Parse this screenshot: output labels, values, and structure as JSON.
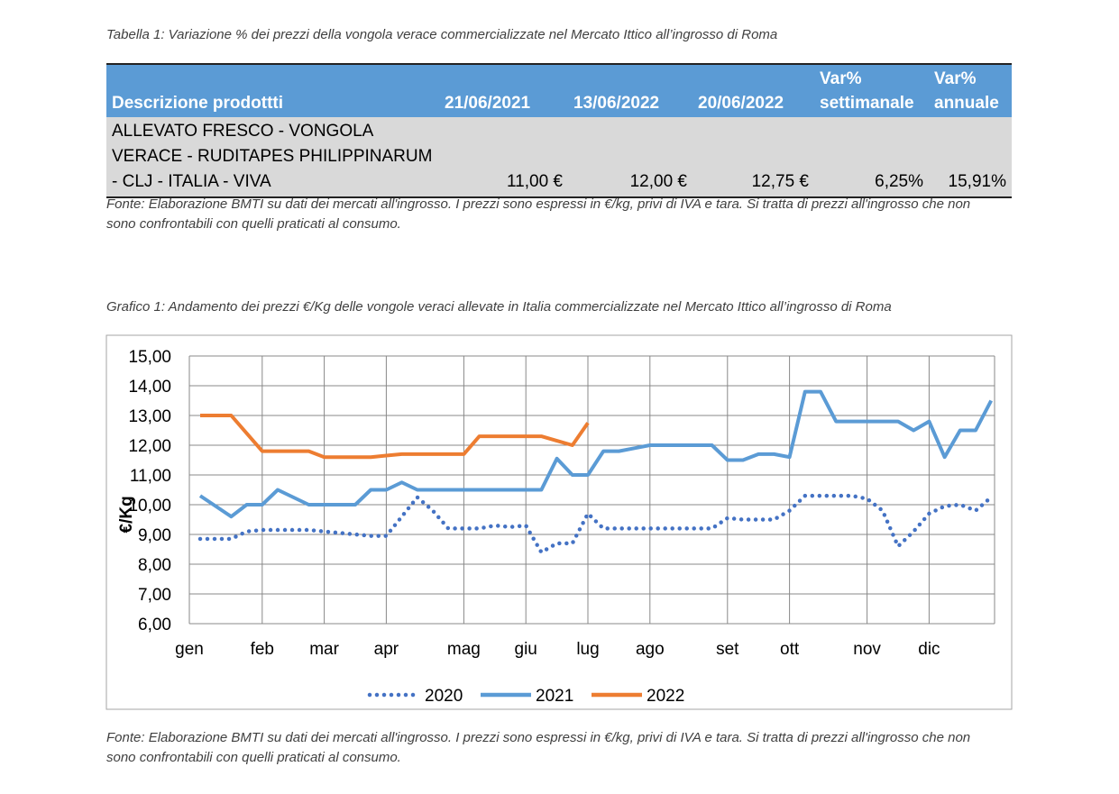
{
  "table_caption": "Tabella 1: Variazione % dei prezzi della vongola verace commercializzate nel Mercato Ittico all’ingrosso di Roma",
  "table": {
    "header": [
      "Descrizione prodottti",
      "21/06/2021",
      "13/06/2022",
      "20/06/2022",
      "Var% settimanale",
      "Var% annuale"
    ],
    "rows": [
      [
        "ALLEVATO FRESCO - VONGOLA VERACE - RUDITAPES PHILIPPINARUM - CLJ - ITALIA - VIVA",
        "11,00 €",
        "12,00 €",
        "12,75 €",
        "6,25%",
        "15,91%"
      ]
    ]
  },
  "table_source": "Fonte: Elaborazione BMTI su dati dei mercati all'ingrosso. I prezzi sono espressi in €/kg, privi di IVA e tara. Si tratta di prezzi all'ingrosso che non sono confrontabili con quelli praticati al consumo.",
  "chart_caption": "Grafico 1: Andamento dei prezzi €/Kg delle vongole veraci allevate in Italia commercializzate nel Mercato Ittico all’ingrosso di Roma",
  "chart_data": {
    "type": "line",
    "y_label": "€/Kg",
    "categories": [
      "gen",
      null,
      null,
      null,
      "feb",
      null,
      null,
      null,
      "mar",
      null,
      null,
      null,
      "apr",
      null,
      null,
      null,
      null,
      "mag",
      null,
      null,
      null,
      "giu",
      null,
      null,
      null,
      "lug",
      null,
      null,
      null,
      "ago",
      null,
      null,
      null,
      null,
      "set",
      null,
      null,
      null,
      "ott",
      null,
      null,
      null,
      null,
      "nov",
      null,
      null,
      null,
      "dic",
      null,
      null,
      null,
      null
    ],
    "series": [
      {
        "name": "2020",
        "color": "#4472c4",
        "dotted": true,
        "values": [
          8.85,
          8.85,
          8.85,
          9.1,
          9.15,
          9.15,
          9.15,
          9.15,
          9.1,
          9.05,
          9.0,
          8.95,
          8.95,
          9.6,
          10.25,
          9.8,
          9.2,
          9.2,
          9.2,
          9.3,
          9.25,
          9.3,
          8.4,
          8.7,
          8.7,
          9.7,
          9.2,
          9.2,
          9.2,
          9.2,
          9.2,
          9.2,
          9.2,
          9.2,
          9.55,
          9.5,
          9.5,
          9.5,
          9.8,
          10.3,
          10.3,
          10.3,
          10.3,
          10.2,
          9.8,
          8.6,
          9.1,
          9.7,
          9.95,
          10.0,
          9.8,
          10.25
        ]
      },
      {
        "name": "2021",
        "color": "#5b9bd5",
        "dotted": false,
        "values": [
          10.3,
          9.95,
          9.6,
          10.0,
          10.0,
          10.5,
          10.25,
          10.0,
          10.0,
          10.0,
          10.0,
          10.5,
          10.5,
          10.75,
          10.5,
          10.5,
          10.5,
          10.5,
          10.5,
          10.5,
          10.5,
          10.5,
          10.5,
          11.55,
          11.0,
          11.0,
          11.8,
          11.8,
          11.9,
          12.0,
          12.0,
          12.0,
          12.0,
          12.0,
          11.5,
          11.5,
          11.7,
          11.7,
          11.6,
          13.8,
          13.8,
          12.8,
          12.8,
          12.8,
          12.8,
          12.8,
          12.5,
          12.8,
          11.6,
          12.5,
          12.5,
          13.5
        ]
      },
      {
        "name": "2022",
        "color": "#ed7d31",
        "dotted": false,
        "values": [
          13.0,
          13.0,
          13.0,
          12.4,
          11.8,
          11.8,
          11.8,
          11.8,
          11.6,
          11.6,
          11.6,
          11.6,
          11.65,
          11.7,
          11.7,
          11.7,
          11.7,
          11.7,
          12.3,
          12.3,
          12.3,
          12.3,
          12.3,
          12.15,
          12.0,
          12.75,
          null,
          null,
          null,
          null,
          null,
          null,
          null,
          null,
          null,
          null,
          null,
          null,
          null,
          null,
          null,
          null,
          null,
          null,
          null,
          null,
          null,
          null,
          null,
          null,
          null,
          null
        ]
      }
    ],
    "ylim": [
      6,
      15
    ],
    "yticks": [
      {
        "value": 6,
        "label": "6,00"
      },
      {
        "value": 7,
        "label": "7,00"
      },
      {
        "value": 8,
        "label": "8,00"
      },
      {
        "value": 9,
        "label": "9,00"
      },
      {
        "value": 10,
        "label": "10,00"
      },
      {
        "value": 11,
        "label": "11,00"
      },
      {
        "value": 12,
        "label": "12,00"
      },
      {
        "value": 13,
        "label": "13,00"
      },
      {
        "value": 14,
        "label": "14,00"
      },
      {
        "value": 15,
        "label": "15,00"
      }
    ],
    "grid": true,
    "legend": "bottom"
  },
  "chart_source": "Fonte: Elaborazione BMTI su dati dei mercati all'ingrosso. I prezzi sono espressi in €/kg, privi di IVA e tara. Si tratta di prezzi all'ingrosso che non sono confrontabili con quelli praticati al consumo."
}
